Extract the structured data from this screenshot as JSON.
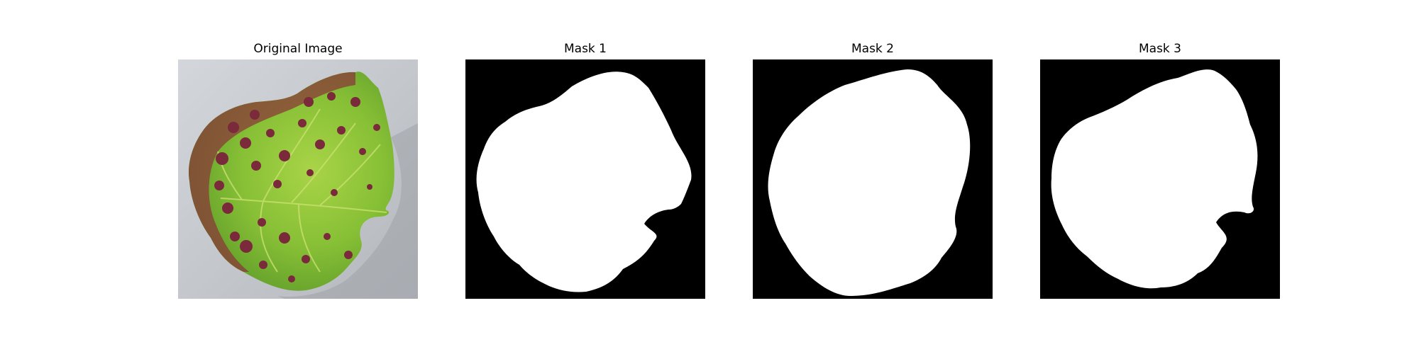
{
  "figure": {
    "panels": [
      {
        "title": "Original Image"
      },
      {
        "title": "Mask 1"
      },
      {
        "title": "Mask 2"
      },
      {
        "title": "Mask 3"
      }
    ]
  },
  "colors": {
    "background": "#ffffff",
    "mask_background": "#000000",
    "mask_foreground": "#ffffff",
    "leaf_green": "#8cc43c",
    "lesion": "#7a2a3a",
    "surface": "#c8ccd0"
  }
}
